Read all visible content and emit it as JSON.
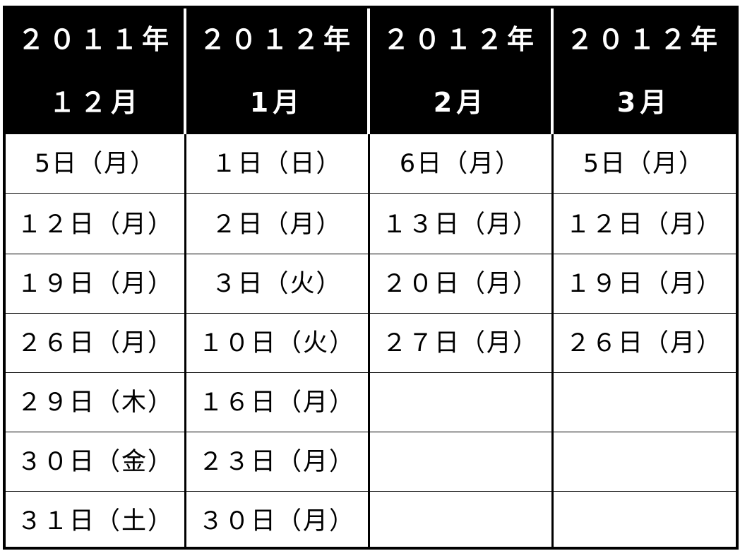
{
  "columns": [
    {
      "year": "２０１１年",
      "month": "１２月",
      "dates": [
        "5日（月）",
        "１２日（月）",
        "１９日（月）",
        "２６日（月）",
        "２９日（木）",
        "３０日（金）",
        "３１日（土）"
      ]
    },
    {
      "year": "２０１２年",
      "month": "1月",
      "dates": [
        "１日（日）",
        "２日（月）",
        "３日（火）",
        "１０日（火）",
        "１６日（月）",
        "２３日（月）",
        "３０日（月）"
      ]
    },
    {
      "year": "２０１２年",
      "month": "2月",
      "dates": [
        "6日（月）",
        "１３日（月）",
        "２０日（月）",
        "２７日（月）",
        "",
        "",
        ""
      ]
    },
    {
      "year": "２０１２年",
      "month": "3月",
      "dates": [
        "5日（月）",
        "１２日（月）",
        "１９日（月）",
        "２６日（月）",
        "",
        "",
        ""
      ]
    }
  ]
}
